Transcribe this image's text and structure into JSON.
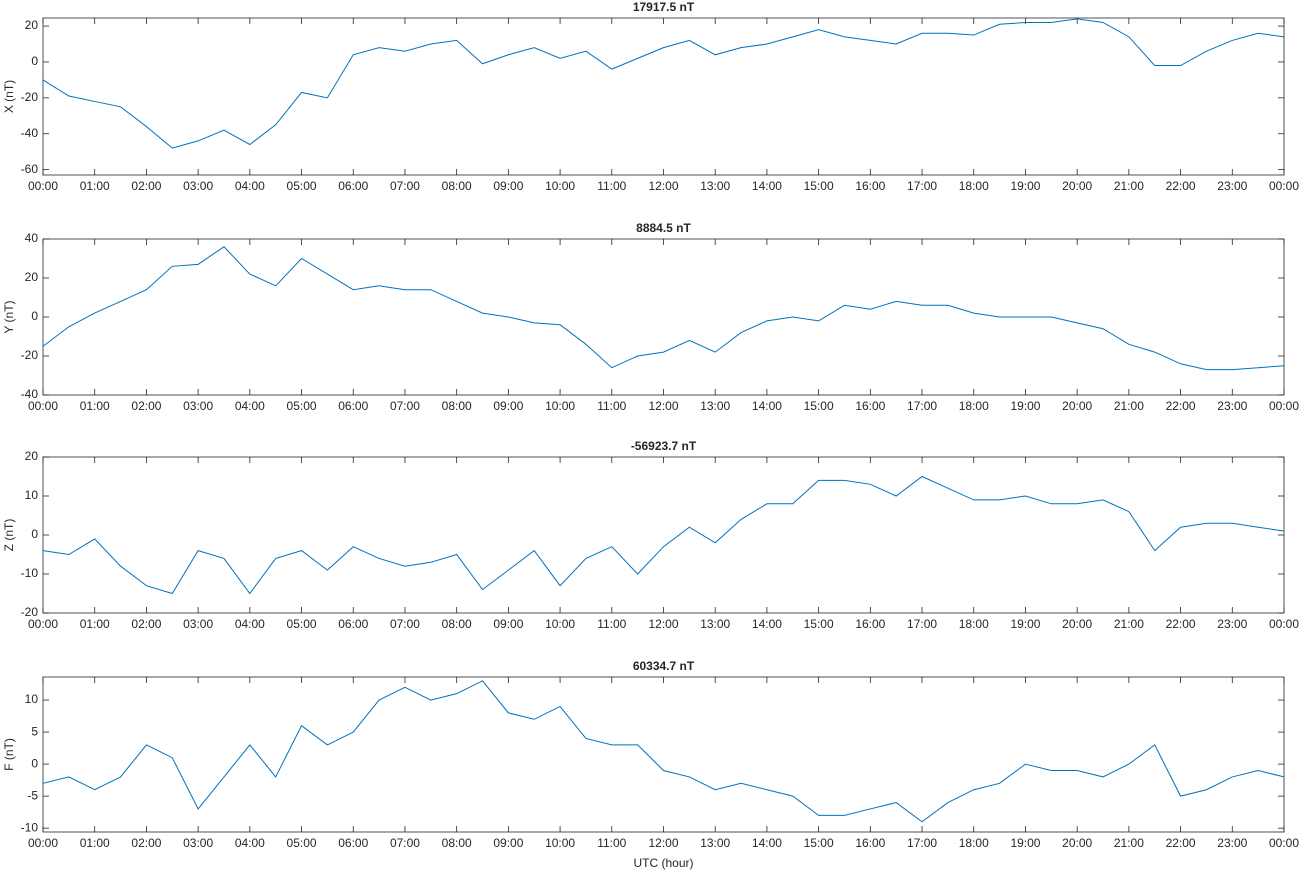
{
  "chart_data": [
    {
      "type": "line",
      "title": "17917.5 nT",
      "ylabel": "X (nT)",
      "x": [
        0,
        0.5,
        1,
        1.5,
        2,
        2.5,
        3,
        3.5,
        4,
        4.5,
        5,
        5.5,
        6,
        6.5,
        7,
        7.5,
        8,
        8.5,
        9,
        9.5,
        10,
        10.5,
        11,
        11.5,
        12,
        12.5,
        13,
        13.5,
        14,
        14.5,
        15,
        15.5,
        16,
        16.5,
        17,
        17.5,
        18,
        18.5,
        19,
        19.5,
        20,
        20.5,
        21,
        21.5,
        22,
        22.5,
        23,
        23.5,
        24
      ],
      "series": [
        {
          "name": "X",
          "color": "#0072bd",
          "values": [
            -10,
            -19,
            -22,
            -25,
            -36,
            -48,
            -44,
            -38,
            -46,
            -35,
            -17,
            -20,
            4,
            8,
            6,
            10,
            12,
            -1,
            4,
            8,
            2,
            6,
            -4,
            2,
            8,
            12,
            4,
            8,
            10,
            14,
            18,
            14,
            12,
            10,
            16,
            16,
            15,
            21,
            22,
            22,
            24,
            22,
            14,
            -2,
            -2,
            6,
            12,
            16,
            14
          ]
        }
      ],
      "xlim": [
        0,
        24
      ],
      "ylim": [
        -63,
        24.5
      ],
      "yticks": [
        -60,
        -40,
        -20,
        0,
        20
      ],
      "xticks": [
        {
          "value": 0,
          "label": "00:00"
        },
        {
          "value": 1,
          "label": "01:00"
        },
        {
          "value": 2,
          "label": "02:00"
        },
        {
          "value": 3,
          "label": "03:00"
        },
        {
          "value": 4,
          "label": "04:00"
        },
        {
          "value": 5,
          "label": "05:00"
        },
        {
          "value": 6,
          "label": "06:00"
        },
        {
          "value": 7,
          "label": "07:00"
        },
        {
          "value": 8,
          "label": "08:00"
        },
        {
          "value": 9,
          "label": "09:00"
        },
        {
          "value": 10,
          "label": "10:00"
        },
        {
          "value": 11,
          "label": "11:00"
        },
        {
          "value": 12,
          "label": "12:00"
        },
        {
          "value": 13,
          "label": "13:00"
        },
        {
          "value": 14,
          "label": "14:00"
        },
        {
          "value": 15,
          "label": "15:00"
        },
        {
          "value": 16,
          "label": "16:00"
        },
        {
          "value": 17,
          "label": "17:00"
        },
        {
          "value": 18,
          "label": "18:00"
        },
        {
          "value": 19,
          "label": "19:00"
        },
        {
          "value": 20,
          "label": "20:00"
        },
        {
          "value": 21,
          "label": "21:00"
        },
        {
          "value": 22,
          "label": "22:00"
        },
        {
          "value": 23,
          "label": "23:00"
        },
        {
          "value": 24,
          "label": "00:00"
        }
      ]
    },
    {
      "type": "line",
      "title": "8884.5 nT",
      "ylabel": "Y (nT)",
      "x": [
        0,
        0.5,
        1,
        1.5,
        2,
        2.5,
        3,
        3.5,
        4,
        4.5,
        5,
        5.5,
        6,
        6.5,
        7,
        7.5,
        8,
        8.5,
        9,
        9.5,
        10,
        10.5,
        11,
        11.5,
        12,
        12.5,
        13,
        13.5,
        14,
        14.5,
        15,
        15.5,
        16,
        16.5,
        17,
        17.5,
        18,
        18.5,
        19,
        19.5,
        20,
        20.5,
        21,
        21.5,
        22,
        22.5,
        23,
        23.5,
        24
      ],
      "series": [
        {
          "name": "Y",
          "color": "#0072bd",
          "values": [
            -15,
            -5,
            2,
            8,
            14,
            26,
            27,
            36,
            22,
            16,
            30,
            22,
            14,
            16,
            14,
            14,
            8,
            2,
            0,
            -3,
            -4,
            -14,
            -26,
            -20,
            -18,
            -12,
            -18,
            -8,
            -2,
            0,
            -2,
            6,
            4,
            8,
            6,
            6,
            2,
            0,
            0,
            0,
            -3,
            -6,
            -14,
            -18,
            -24,
            -27,
            -27,
            -26,
            -25
          ]
        }
      ],
      "xlim": [
        0,
        24
      ],
      "ylim": [
        -40,
        40
      ],
      "yticks": [
        -40,
        -20,
        0,
        20,
        40
      ],
      "xticks": [
        {
          "value": 0,
          "label": "00:00"
        },
        {
          "value": 1,
          "label": "01:00"
        },
        {
          "value": 2,
          "label": "02:00"
        },
        {
          "value": 3,
          "label": "03:00"
        },
        {
          "value": 4,
          "label": "04:00"
        },
        {
          "value": 5,
          "label": "05:00"
        },
        {
          "value": 6,
          "label": "06:00"
        },
        {
          "value": 7,
          "label": "07:00"
        },
        {
          "value": 8,
          "label": "08:00"
        },
        {
          "value": 9,
          "label": "09:00"
        },
        {
          "value": 10,
          "label": "10:00"
        },
        {
          "value": 11,
          "label": "11:00"
        },
        {
          "value": 12,
          "label": "12:00"
        },
        {
          "value": 13,
          "label": "13:00"
        },
        {
          "value": 14,
          "label": "14:00"
        },
        {
          "value": 15,
          "label": "15:00"
        },
        {
          "value": 16,
          "label": "16:00"
        },
        {
          "value": 17,
          "label": "17:00"
        },
        {
          "value": 18,
          "label": "18:00"
        },
        {
          "value": 19,
          "label": "19:00"
        },
        {
          "value": 20,
          "label": "20:00"
        },
        {
          "value": 21,
          "label": "21:00"
        },
        {
          "value": 22,
          "label": "22:00"
        },
        {
          "value": 23,
          "label": "23:00"
        },
        {
          "value": 24,
          "label": "00:00"
        }
      ]
    },
    {
      "type": "line",
      "title": "-56923.7 nT",
      "ylabel": "Z (nT)",
      "x": [
        0,
        0.5,
        1,
        1.5,
        2,
        2.5,
        3,
        3.5,
        4,
        4.5,
        5,
        5.5,
        6,
        6.5,
        7,
        7.5,
        8,
        8.5,
        9,
        9.5,
        10,
        10.5,
        11,
        11.5,
        12,
        12.5,
        13,
        13.5,
        14,
        14.5,
        15,
        15.5,
        16,
        16.5,
        17,
        17.5,
        18,
        18.5,
        19,
        19.5,
        20,
        20.5,
        21,
        21.5,
        22,
        22.5,
        23,
        23.5,
        24
      ],
      "series": [
        {
          "name": "Z",
          "color": "#0072bd",
          "values": [
            -4,
            -5,
            -1,
            -8,
            -13,
            -15,
            -4,
            -6,
            -15,
            -6,
            -4,
            -9,
            -3,
            -6,
            -8,
            -7,
            -5,
            -14,
            -9,
            -4,
            -13,
            -6,
            -3,
            -10,
            -3,
            2,
            -2,
            4,
            8,
            8,
            14,
            14,
            13,
            10,
            15,
            12,
            9,
            9,
            10,
            8,
            8,
            9,
            6,
            -4,
            2,
            3,
            3,
            2,
            1
          ]
        }
      ],
      "xlim": [
        0,
        24
      ],
      "ylim": [
        -20,
        20
      ],
      "yticks": [
        -20,
        -10,
        0,
        10,
        20
      ],
      "xticks": [
        {
          "value": 0,
          "label": "00:00"
        },
        {
          "value": 1,
          "label": "01:00"
        },
        {
          "value": 2,
          "label": "02:00"
        },
        {
          "value": 3,
          "label": "03:00"
        },
        {
          "value": 4,
          "label": "04:00"
        },
        {
          "value": 5,
          "label": "05:00"
        },
        {
          "value": 6,
          "label": "06:00"
        },
        {
          "value": 7,
          "label": "07:00"
        },
        {
          "value": 8,
          "label": "08:00"
        },
        {
          "value": 9,
          "label": "09:00"
        },
        {
          "value": 10,
          "label": "10:00"
        },
        {
          "value": 11,
          "label": "11:00"
        },
        {
          "value": 12,
          "label": "12:00"
        },
        {
          "value": 13,
          "label": "13:00"
        },
        {
          "value": 14,
          "label": "14:00"
        },
        {
          "value": 15,
          "label": "15:00"
        },
        {
          "value": 16,
          "label": "16:00"
        },
        {
          "value": 17,
          "label": "17:00"
        },
        {
          "value": 18,
          "label": "18:00"
        },
        {
          "value": 19,
          "label": "19:00"
        },
        {
          "value": 20,
          "label": "20:00"
        },
        {
          "value": 21,
          "label": "21:00"
        },
        {
          "value": 22,
          "label": "22:00"
        },
        {
          "value": 23,
          "label": "23:00"
        },
        {
          "value": 24,
          "label": "00:00"
        }
      ]
    },
    {
      "type": "line",
      "title": "60334.7 nT",
      "ylabel": "F (nT)",
      "xlabel": "UTC (hour)",
      "x": [
        0,
        0.5,
        1,
        1.5,
        2,
        2.5,
        3,
        3.5,
        4,
        4.5,
        5,
        5.5,
        6,
        6.5,
        7,
        7.5,
        8,
        8.5,
        9,
        9.5,
        10,
        10.5,
        11,
        11.5,
        12,
        12.5,
        13,
        13.5,
        14,
        14.5,
        15,
        15.5,
        16,
        16.5,
        17,
        17.5,
        18,
        18.5,
        19,
        19.5,
        20,
        20.5,
        21,
        21.5,
        22,
        22.5,
        23,
        23.5,
        24
      ],
      "series": [
        {
          "name": "F",
          "color": "#0072bd",
          "values": [
            -3,
            -2,
            -4,
            -2,
            3,
            1,
            -7,
            -2,
            3,
            -2,
            6,
            3,
            5,
            10,
            12,
            10,
            11,
            13,
            8,
            7,
            9,
            4,
            3,
            3,
            -1,
            -2,
            -4,
            -3,
            -4,
            -5,
            -8,
            -8,
            -7,
            -6,
            -9,
            -6,
            -4,
            -3,
            0,
            -1,
            -1,
            -2,
            0,
            3,
            -5,
            -4,
            -2,
            -1,
            -2
          ]
        }
      ],
      "xlim": [
        0,
        24
      ],
      "ylim": [
        -10.6,
        13.6
      ],
      "yticks": [
        -10,
        -5,
        0,
        5,
        10
      ],
      "xticks": [
        {
          "value": 0,
          "label": "00:00"
        },
        {
          "value": 1,
          "label": "01:00"
        },
        {
          "value": 2,
          "label": "02:00"
        },
        {
          "value": 3,
          "label": "03:00"
        },
        {
          "value": 4,
          "label": "04:00"
        },
        {
          "value": 5,
          "label": "05:00"
        },
        {
          "value": 6,
          "label": "06:00"
        },
        {
          "value": 7,
          "label": "07:00"
        },
        {
          "value": 8,
          "label": "08:00"
        },
        {
          "value": 9,
          "label": "09:00"
        },
        {
          "value": 10,
          "label": "10:00"
        },
        {
          "value": 11,
          "label": "11:00"
        },
        {
          "value": 12,
          "label": "12:00"
        },
        {
          "value": 13,
          "label": "13:00"
        },
        {
          "value": 14,
          "label": "14:00"
        },
        {
          "value": 15,
          "label": "15:00"
        },
        {
          "value": 16,
          "label": "16:00"
        },
        {
          "value": 17,
          "label": "17:00"
        },
        {
          "value": 18,
          "label": "18:00"
        },
        {
          "value": 19,
          "label": "19:00"
        },
        {
          "value": 20,
          "label": "20:00"
        },
        {
          "value": 21,
          "label": "21:00"
        },
        {
          "value": 22,
          "label": "22:00"
        },
        {
          "value": 23,
          "label": "23:00"
        },
        {
          "value": 24,
          "label": "00:00"
        }
      ]
    }
  ]
}
